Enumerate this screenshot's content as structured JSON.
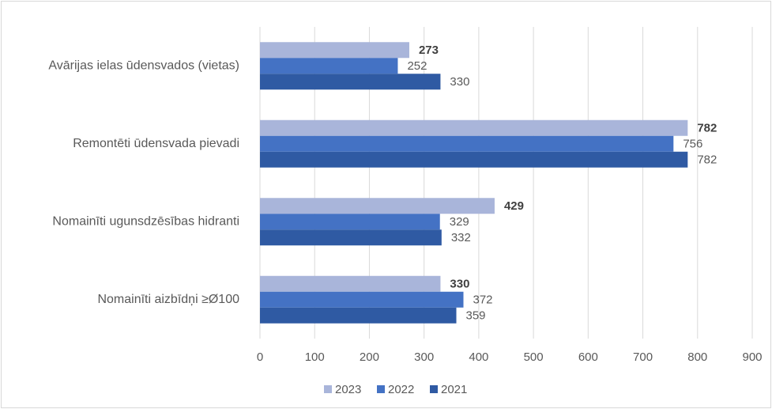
{
  "chart_data": {
    "type": "hbar",
    "categories": [
      "Avārijas ielas ūdensvados (vietas)",
      "Remontēti ūdensvada pievadi",
      "Nomainīti ugunsdzēsības hidranti",
      "Nomainīti aizbīdņi ≥Ø100"
    ],
    "series": [
      {
        "name": "2023",
        "color": "#a9b5da",
        "values": [
          273,
          782,
          429,
          330
        ],
        "label_bold": true
      },
      {
        "name": "2022",
        "color": "#4472c4",
        "values": [
          252,
          756,
          329,
          372
        ],
        "label_bold": false
      },
      {
        "name": "2021",
        "color": "#2f5aa3",
        "values": [
          330,
          782,
          332,
          359
        ],
        "label_bold": false
      }
    ],
    "xlim": [
      0,
      900
    ],
    "xticks": [
      0,
      100,
      200,
      300,
      400,
      500,
      600,
      700,
      800,
      900
    ],
    "grid": true,
    "legend": "bottom"
  }
}
